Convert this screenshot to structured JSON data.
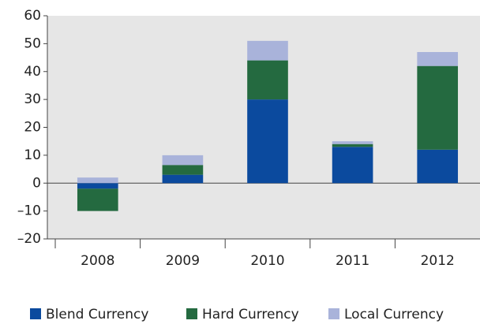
{
  "chart_data": {
    "type": "stacked_bar",
    "categories": [
      "2008",
      "2009",
      "2010",
      "2011",
      "2012"
    ],
    "series": [
      {
        "name": "Blend Currency",
        "color": "#0b4a9e",
        "values": [
          -2,
          3,
          30,
          13,
          12
        ]
      },
      {
        "name": "Hard Currency",
        "color": "#246a40",
        "values": [
          -8,
          3.5,
          14,
          1,
          30
        ]
      },
      {
        "name": "Local Currency",
        "color": "#a9b3da",
        "values": [
          2,
          3.5,
          7,
          1,
          5
        ]
      }
    ],
    "ylim": [
      -20,
      60
    ],
    "yticks": [
      {
        "value": -20,
        "label": "–20"
      },
      {
        "value": -10,
        "label": "–10"
      },
      0,
      10,
      20,
      30,
      40,
      50,
      60
    ],
    "legend": "bottom"
  }
}
